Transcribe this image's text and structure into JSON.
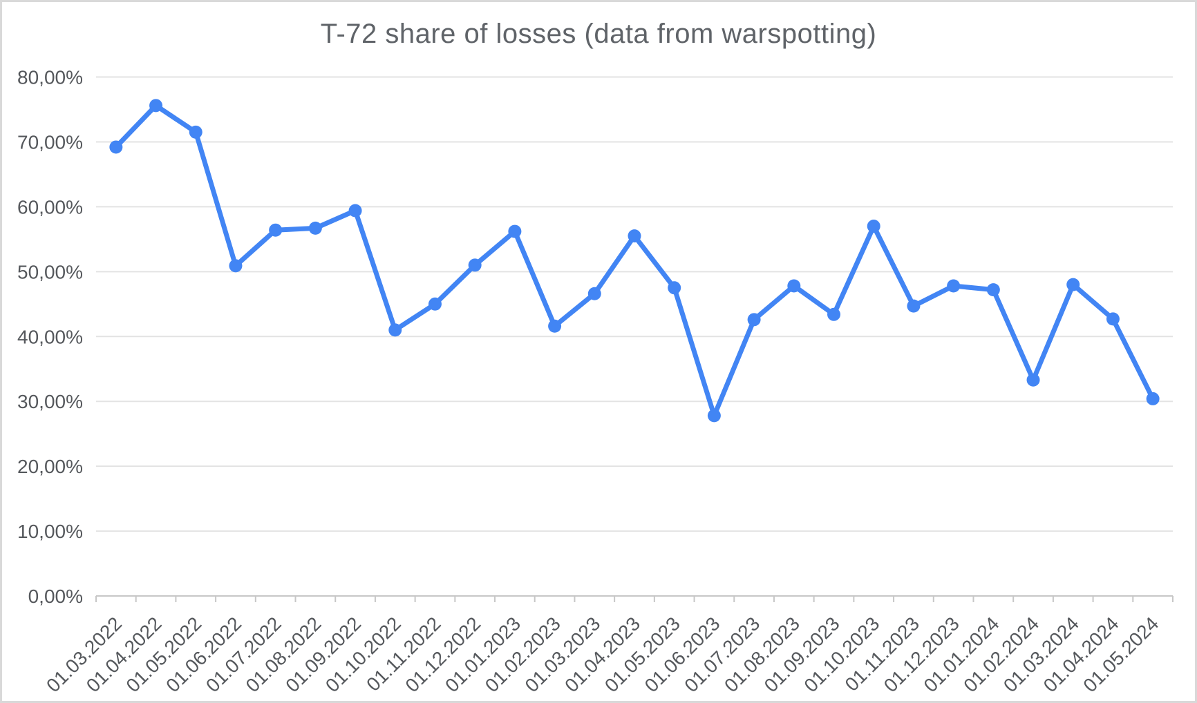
{
  "chart_data": {
    "type": "line",
    "title": "T-72 share of losses (data from warspotting)",
    "categories": [
      "01.03.2022",
      "01.04.2022",
      "01.05.2022",
      "01.06.2022",
      "01.07.2022",
      "01.08.2022",
      "01.09.2022",
      "01.10.2022",
      "01.11.2022",
      "01.12.2022",
      "01.01.2023",
      "01.02.2023",
      "01.03.2023",
      "01.04.2023",
      "01.05.2023",
      "01.06.2023",
      "01.07.2023",
      "01.08.2023",
      "01.09.2023",
      "01.10.2023",
      "01.11.2023",
      "01.12.2023",
      "01.01.2024",
      "01.02.2024",
      "01.03.2024",
      "01.04.2024",
      "01.05.2024"
    ],
    "series": [
      {
        "name": "T-72 share of losses",
        "values": [
          69.2,
          75.6,
          71.5,
          50.9,
          56.4,
          56.7,
          59.4,
          41.0,
          45.0,
          51.0,
          56.2,
          41.6,
          46.6,
          55.5,
          47.5,
          27.8,
          42.6,
          47.8,
          43.4,
          57.0,
          44.7,
          47.8,
          47.2,
          33.3,
          48.0,
          42.7,
          30.4
        ]
      }
    ],
    "xlabel": "",
    "ylabel": "",
    "ylim": [
      0,
      80
    ],
    "y_ticks": [
      0,
      10,
      20,
      30,
      40,
      50,
      60,
      70,
      80
    ],
    "y_tick_labels": [
      "0,00%",
      "10,00%",
      "20,00%",
      "30,00%",
      "40,00%",
      "50,00%",
      "60,00%",
      "70,00%",
      "80,00%"
    ],
    "grid": true,
    "legend_position": "none",
    "x_label_rotation": 45,
    "colors": {
      "series": "#4285f4",
      "gridline": "#e3e3e3",
      "axis": "#c7c7c7",
      "tick_label": "#55585c",
      "title": "#5f6368",
      "background": "#ffffff",
      "border": "#d9d9d9"
    }
  }
}
